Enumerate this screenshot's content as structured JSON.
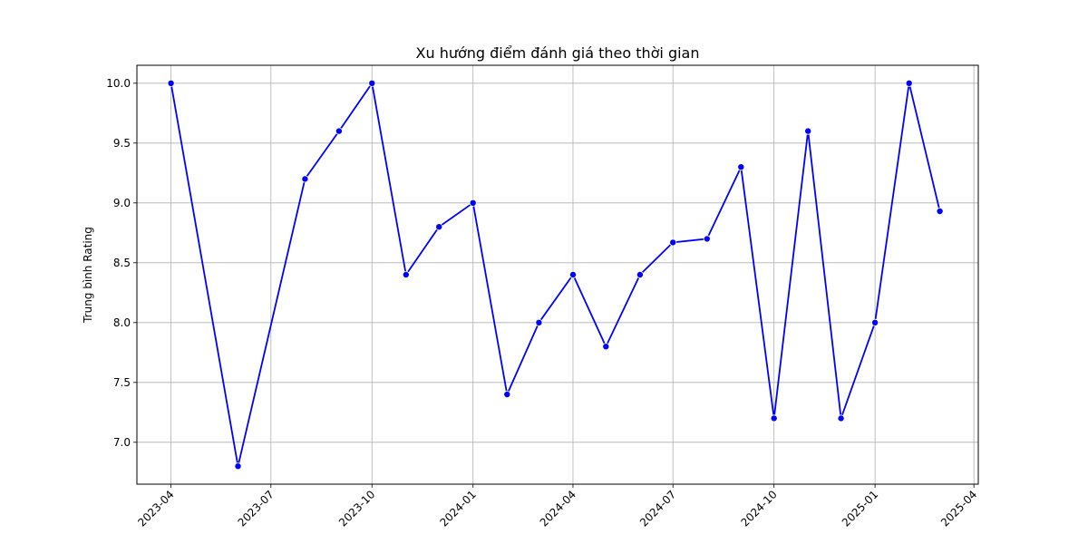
{
  "chart_data": {
    "type": "line",
    "title": "Xu hướng điểm đánh giá theo thời gian",
    "xlabel": "",
    "ylabel": "Trung bình Rating",
    "ylim": [
      6.65,
      10.15
    ],
    "xlim": [
      "2023-03-01",
      "2025-04-05"
    ],
    "grid": true,
    "line_color": "#0000ff",
    "marker_color": "#0000ff",
    "x_ticks": [
      "2023-04",
      "2023-07",
      "2023-10",
      "2024-01",
      "2024-04",
      "2024-07",
      "2024-10",
      "2025-01",
      "2025-04"
    ],
    "y_ticks": [
      7.0,
      7.5,
      8.0,
      8.5,
      9.0,
      9.5,
      10.0
    ],
    "x": [
      "2023-04-01",
      "2023-06-01",
      "2023-08-01",
      "2023-09-01",
      "2023-10-01",
      "2023-11-01",
      "2023-12-01",
      "2024-01-01",
      "2024-02-01",
      "2024-03-01",
      "2024-04-01",
      "2024-05-01",
      "2024-06-01",
      "2024-07-01",
      "2024-08-01",
      "2024-09-01",
      "2024-10-01",
      "2024-11-01",
      "2024-12-01",
      "2025-01-01",
      "2025-02-01",
      "2025-03-01"
    ],
    "values": [
      10.0,
      6.8,
      9.2,
      9.6,
      10.0,
      8.4,
      8.8,
      9.0,
      7.4,
      8.0,
      8.4,
      7.8,
      8.4,
      8.67,
      8.7,
      9.3,
      7.2,
      9.6,
      7.2,
      8.0,
      10.0,
      8.93
    ]
  }
}
